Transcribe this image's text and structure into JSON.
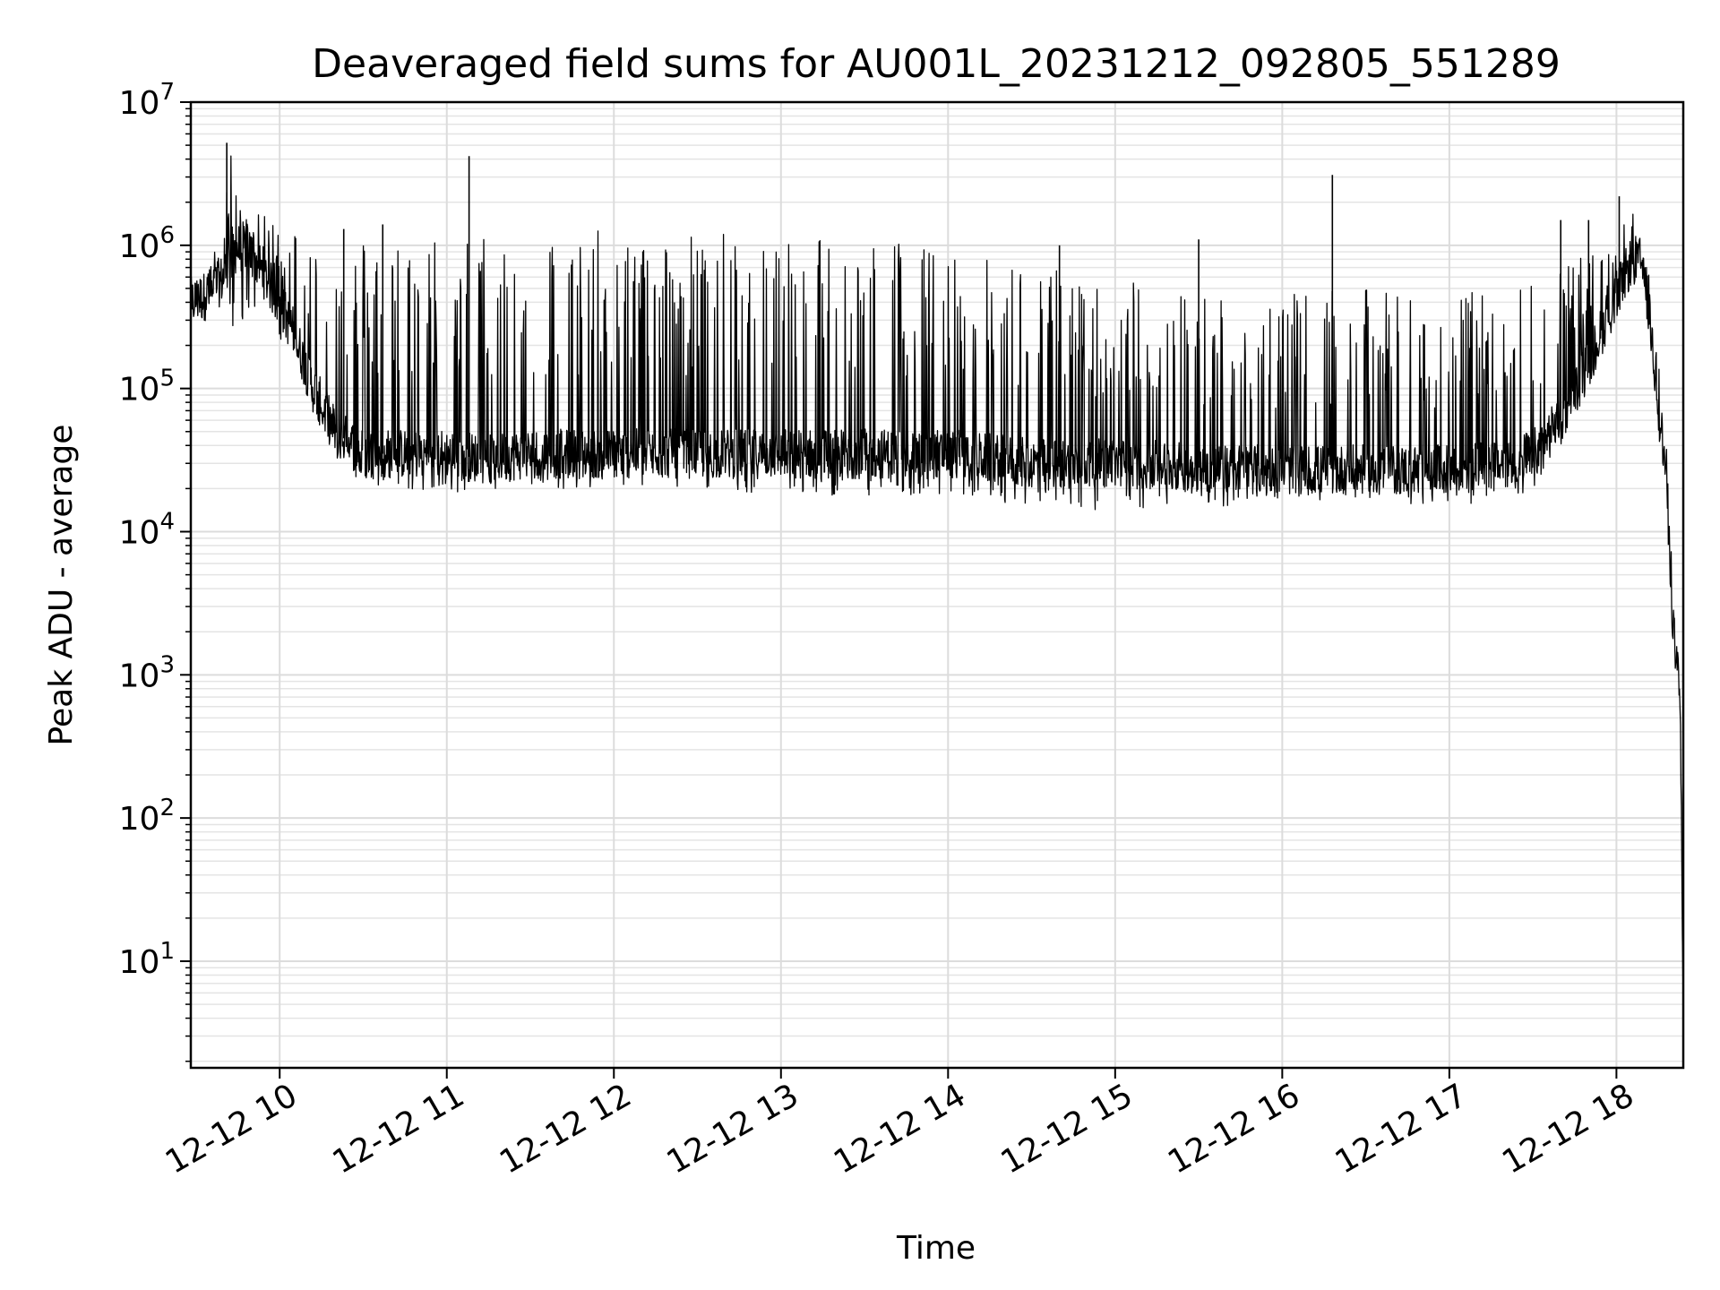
{
  "chart_data": {
    "type": "line",
    "title": "Deaveraged field sums for AU001L_20231212_092805_551289",
    "xlabel": "Time",
    "ylabel": "Peak ADU - average",
    "x_scale": "time",
    "y_scale": "log",
    "xlim": [
      "2023-12-12T09:28:05",
      "2023-12-12T18:24:00"
    ],
    "ylim": [
      1.8,
      10000000
    ],
    "grid": true,
    "line_color": "#000000",
    "x_ticks": [
      {
        "value": "2023-12-12T10:00:00",
        "label": "12-12 10"
      },
      {
        "value": "2023-12-12T11:00:00",
        "label": "12-12 11"
      },
      {
        "value": "2023-12-12T12:00:00",
        "label": "12-12 12"
      },
      {
        "value": "2023-12-12T13:00:00",
        "label": "12-12 13"
      },
      {
        "value": "2023-12-12T14:00:00",
        "label": "12-12 14"
      },
      {
        "value": "2023-12-12T15:00:00",
        "label": "12-12 15"
      },
      {
        "value": "2023-12-12T16:00:00",
        "label": "12-12 16"
      },
      {
        "value": "2023-12-12T17:00:00",
        "label": "12-12 17"
      },
      {
        "value": "2023-12-12T18:00:00",
        "label": "12-12 18"
      }
    ],
    "y_ticks": [
      {
        "value": 10,
        "base": "10",
        "exp": "1"
      },
      {
        "value": 100,
        "base": "10",
        "exp": "2"
      },
      {
        "value": 1000,
        "base": "10",
        "exp": "3"
      },
      {
        "value": 10000,
        "base": "10",
        "exp": "4"
      },
      {
        "value": 100000,
        "base": "10",
        "exp": "5"
      },
      {
        "value": 1000000,
        "base": "10",
        "exp": "6"
      },
      {
        "value": 10000000,
        "base": "10",
        "exp": "7"
      }
    ],
    "series": [
      {
        "x": [
          "2023-12-12T09:28:05",
          "2023-12-12T09:34:00",
          "2023-12-12T09:40:00",
          "2023-12-12T09:42:00",
          "2023-12-12T09:48:00",
          "2023-12-12T09:55:00",
          "2023-12-12T10:05:00",
          "2023-12-12T10:12:00",
          "2023-12-12T10:20:00",
          "2023-12-12T10:30:00",
          "2023-12-12T10:45:00",
          "2023-12-12T11:00:00",
          "2023-12-12T11:15:00",
          "2023-12-12T11:30:00",
          "2023-12-12T11:45:00",
          "2023-12-12T12:00:00",
          "2023-12-12T12:20:00",
          "2023-12-12T12:40:00",
          "2023-12-12T13:00:00",
          "2023-12-12T13:20:00",
          "2023-12-12T13:40:00",
          "2023-12-12T14:00:00",
          "2023-12-12T14:30:00",
          "2023-12-12T15:00:00",
          "2023-12-12T15:30:00",
          "2023-12-12T16:00:00",
          "2023-12-12T16:30:00",
          "2023-12-12T17:00:00",
          "2023-12-12T17:20:00",
          "2023-12-12T17:30:00",
          "2023-12-12T17:40:00",
          "2023-12-12T17:50:00",
          "2023-12-12T18:00:00",
          "2023-12-12T18:05:00",
          "2023-12-12T18:08:00",
          "2023-12-12T18:10:00",
          "2023-12-12T18:12:00",
          "2023-12-12T18:15:00",
          "2023-12-12T18:18:00",
          "2023-12-12T18:20:00",
          "2023-12-12T18:22:00",
          "2023-12-12T18:23:00",
          "2023-12-12T18:23:30",
          "2023-12-12T18:24:00"
        ],
        "y": [
          400000,
          450000,
          600000,
          900000,
          1000000,
          600000,
          250000,
          100000,
          50000,
          35000,
          35000,
          35000,
          32000,
          35000,
          35000,
          35000,
          35000,
          35000,
          35000,
          35000,
          35000,
          35000,
          30000,
          30000,
          28000,
          27000,
          27000,
          27000,
          30000,
          35000,
          60000,
          150000,
          450000,
          750000,
          800000,
          650000,
          300000,
          80000,
          25000,
          3000,
          1000,
          400,
          50,
          3.8
        ],
        "upper": [
          600000,
          700000,
          1300000,
          5200000,
          1700000,
          1600000,
          1400000,
          1100000,
          900000,
          1200000,
          1200000,
          1250000,
          1250000,
          1300000,
          1300000,
          1300000,
          1250000,
          1250000,
          1250000,
          1300000,
          1200000,
          900000,
          750000,
          600000,
          500000,
          450000,
          500000,
          450000,
          500000,
          600000,
          800000,
          900000,
          900000,
          2200000,
          900000,
          800000,
          600000,
          200000,
          50000,
          5000,
          1500,
          800,
          100,
          4
        ],
        "lower": [
          350000,
          400000,
          500000,
          150000,
          350000,
          250000,
          150000,
          70000,
          30000,
          20000,
          20000,
          18000,
          20000,
          20000,
          20000,
          20000,
          20000,
          20000,
          17000,
          18000,
          18000,
          18000,
          15000,
          14000,
          15000,
          15000,
          15000,
          15000,
          16000,
          20000,
          35000,
          100000,
          300000,
          600000,
          700000,
          500000,
          200000,
          50000,
          15000,
          2000,
          700,
          200,
          20,
          3.5
        ],
        "spikes": [
          {
            "x": "2023-12-12T09:41:00",
            "y": 5200000
          },
          {
            "x": "2023-12-12T11:08:00",
            "y": 4200000
          },
          {
            "x": "2023-12-12T16:18:00",
            "y": 3100000
          },
          {
            "x": "2023-12-12T18:01:00",
            "y": 2200000
          },
          {
            "x": "2023-12-12T15:30:00",
            "y": 1100000
          },
          {
            "x": "2023-12-12T17:40:00",
            "y": 1500000
          },
          {
            "x": "2023-12-12T17:50:00",
            "y": 1500000
          },
          {
            "x": "2023-12-12T10:23:00",
            "y": 1300000
          },
          {
            "x": "2023-12-12T10:37:00",
            "y": 1400000
          },
          {
            "x": "2023-12-12T14:40:00",
            "y": 1000000
          }
        ]
      }
    ]
  }
}
